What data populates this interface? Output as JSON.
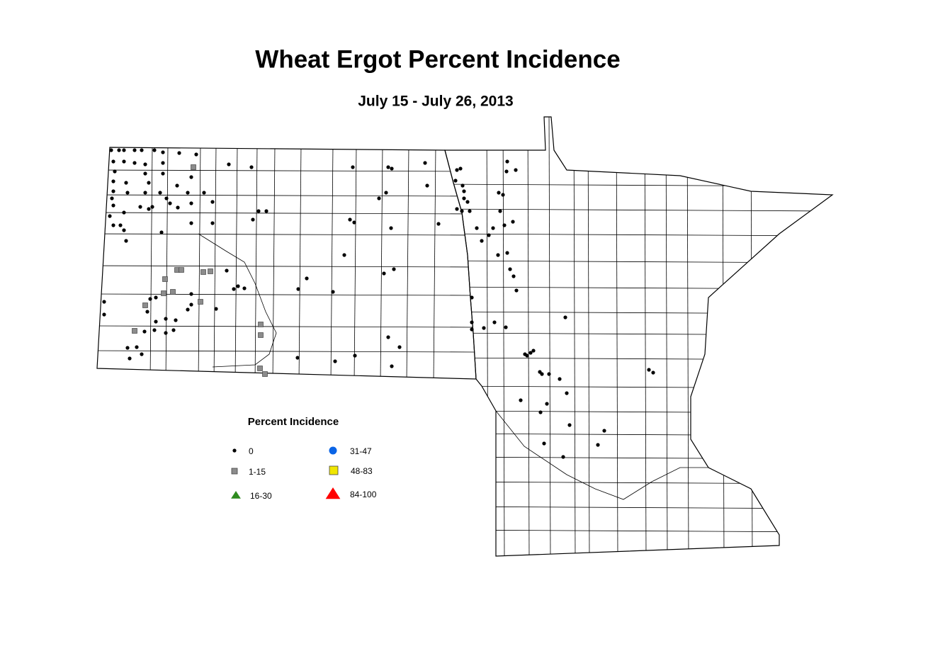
{
  "title": "Wheat Ergot Percent Incidence",
  "subtitle": "July 15 - July 26, 2013",
  "legend": {
    "title": "Percent Incidence",
    "items": [
      {
        "label": "0",
        "shape": "dot",
        "color": "#000000"
      },
      {
        "label": "1-15",
        "shape": "square",
        "color": "#8c8c8c"
      },
      {
        "label": "16-30",
        "shape": "triangle",
        "color": "#2e8b1e"
      },
      {
        "label": "31-47",
        "shape": "circle",
        "color": "#0a64e6"
      },
      {
        "label": "48-83",
        "shape": "square",
        "color": "#f0e600"
      },
      {
        "label": "84-100",
        "shape": "triangle",
        "color": "#ff0000"
      }
    ]
  }
}
